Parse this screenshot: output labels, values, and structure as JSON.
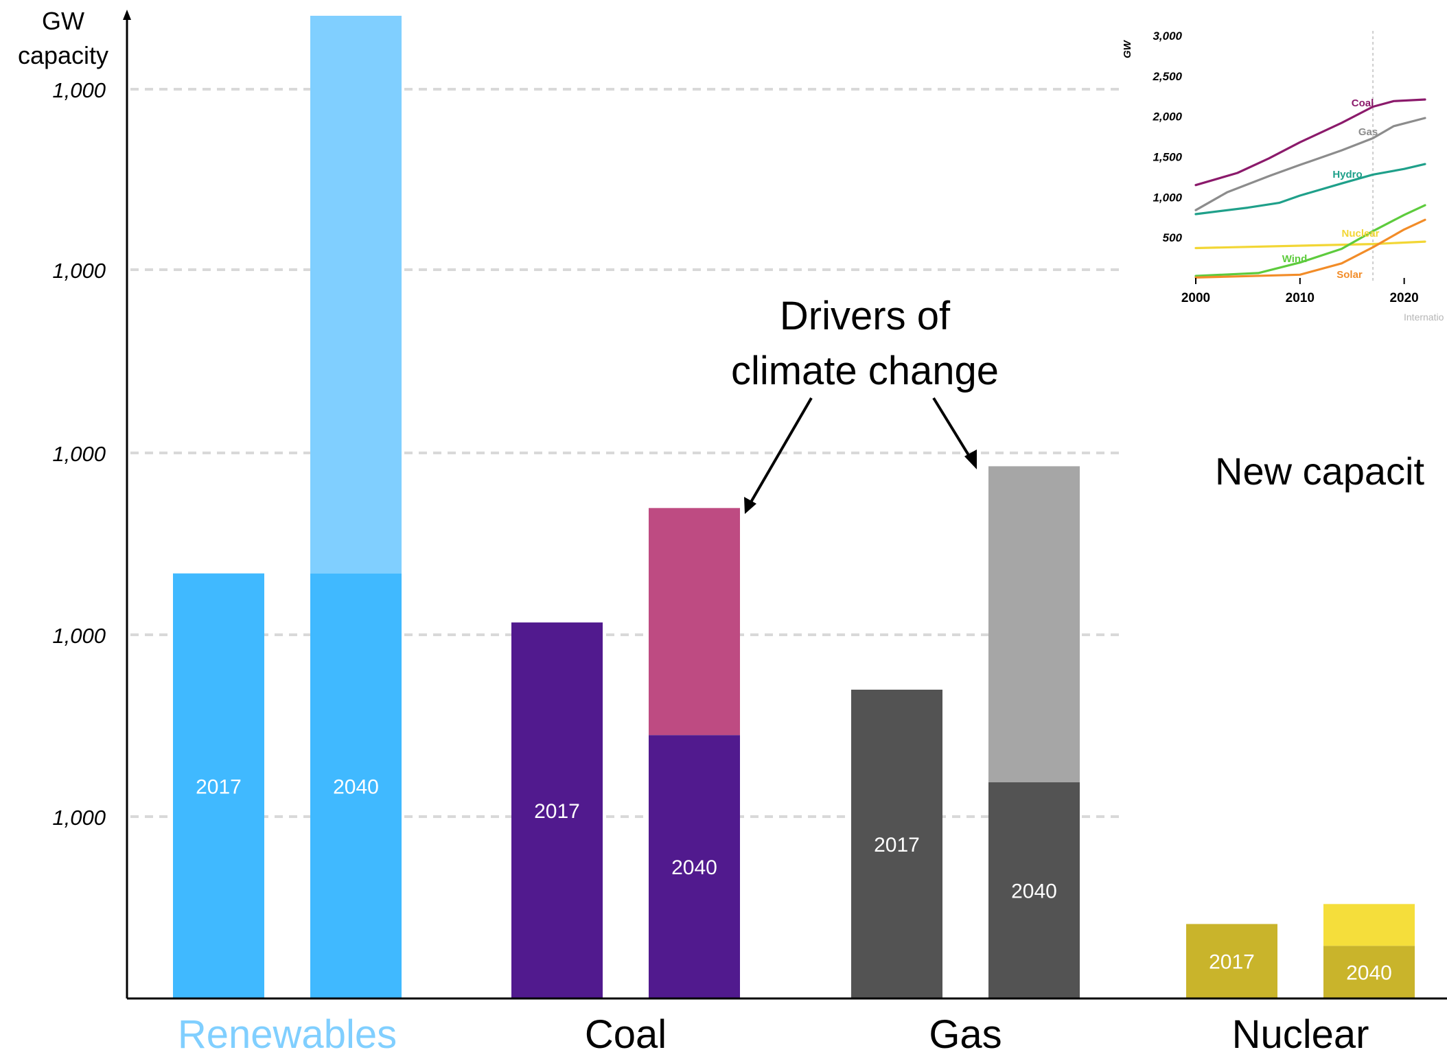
{
  "chart_data": [
    {
      "type": "bar",
      "stacked": true,
      "ylabel_line1": "GW",
      "ylabel_line2": "capacity",
      "ytick_labels": [
        "1,000",
        "1,000",
        "1,000",
        "1,000",
        "1,000"
      ],
      "grid": "dashed horizontal",
      "annotation": {
        "line1": "Drivers of",
        "line2": "climate change"
      },
      "side_text": "New capacit",
      "groups": [
        {
          "name": "Renewables",
          "name_color": "#80CFFF",
          "bars": [
            {
              "label": "2017",
              "segments": [
                {
                  "value": 2340,
                  "color": "#40B9FF"
                }
              ]
            },
            {
              "label": "2040",
              "segments": [
                {
                  "value": 2340,
                  "color": "#40B9FF"
                },
                {
                  "value": 3070,
                  "color": "#80CFFF"
                }
              ]
            }
          ]
        },
        {
          "name": "Coal",
          "name_color": "#000000",
          "bars": [
            {
              "label": "2017",
              "segments": [
                {
                  "value": 2070,
                  "color": "#511A8E"
                }
              ]
            },
            {
              "label": "2040",
              "segments": [
                {
                  "value": 1450,
                  "color": "#511A8E"
                },
                {
                  "value": 1250,
                  "color": "#BE4B82"
                }
              ]
            }
          ]
        },
        {
          "name": "Gas",
          "name_color": "#000000",
          "bars": [
            {
              "label": "2017",
              "segments": [
                {
                  "value": 1700,
                  "color": "#535353"
                }
              ]
            },
            {
              "label": "2040",
              "segments": [
                {
                  "value": 1190,
                  "color": "#535353"
                },
                {
                  "value": 1740,
                  "color": "#A6A6A6"
                }
              ]
            }
          ]
        },
        {
          "name": "Nuclear",
          "name_color": "#000000",
          "bars": [
            {
              "label": "2017",
              "segments": [
                {
                  "value": 410,
                  "color": "#C9B42B"
                }
              ]
            },
            {
              "label": "2040",
              "segments": [
                {
                  "value": 290,
                  "color": "#C9B42B"
                },
                {
                  "value": 230,
                  "color": "#F5DE3B"
                }
              ]
            }
          ]
        }
      ]
    },
    {
      "type": "line",
      "inset": true,
      "ylabel": "GW",
      "yticks": [
        500,
        1000,
        1500,
        2000,
        2500,
        3000
      ],
      "ytick_labels": [
        "500",
        "1,000",
        "1,500",
        "2,000",
        "2,500",
        "3,000"
      ],
      "ylim": [
        0,
        3000
      ],
      "xticks": [
        2000,
        2010,
        2020
      ],
      "xlim": [
        2000,
        2022
      ],
      "reference_year": 2017,
      "source_text": "Internatio",
      "series": [
        {
          "name": "Coal",
          "color": "#8B1A6B",
          "x": [
            2000,
            2004,
            2007,
            2010,
            2014,
            2017,
            2019,
            2022
          ],
          "y": [
            1150,
            1300,
            1480,
            1680,
            1920,
            2120,
            2190,
            2210
          ]
        },
        {
          "name": "Gas",
          "color": "#8C8C8C",
          "x": [
            2000,
            2003,
            2007,
            2010,
            2014,
            2017,
            2019,
            2022
          ],
          "y": [
            840,
            1060,
            1260,
            1400,
            1580,
            1730,
            1880,
            1980
          ]
        },
        {
          "name": "Hydro",
          "color": "#1FA08A",
          "x": [
            2000,
            2005,
            2008,
            2010,
            2014,
            2017,
            2020,
            2022
          ],
          "y": [
            790,
            870,
            930,
            1020,
            1170,
            1280,
            1350,
            1410
          ]
        },
        {
          "name": "Nuclear",
          "color": "#F2D635",
          "x": [
            2000,
            2017,
            2022
          ],
          "y": [
            370,
            420,
            450
          ]
        },
        {
          "name": "Wind",
          "color": "#5DCB3D",
          "x": [
            2000,
            2006,
            2010,
            2014,
            2017,
            2020,
            2022
          ],
          "y": [
            25,
            60,
            190,
            360,
            580,
            780,
            900
          ]
        },
        {
          "name": "Solar",
          "color": "#F28C28",
          "x": [
            2000,
            2010,
            2014,
            2017,
            2020,
            2022
          ],
          "y": [
            5,
            40,
            180,
            380,
            600,
            720
          ]
        }
      ]
    }
  ]
}
